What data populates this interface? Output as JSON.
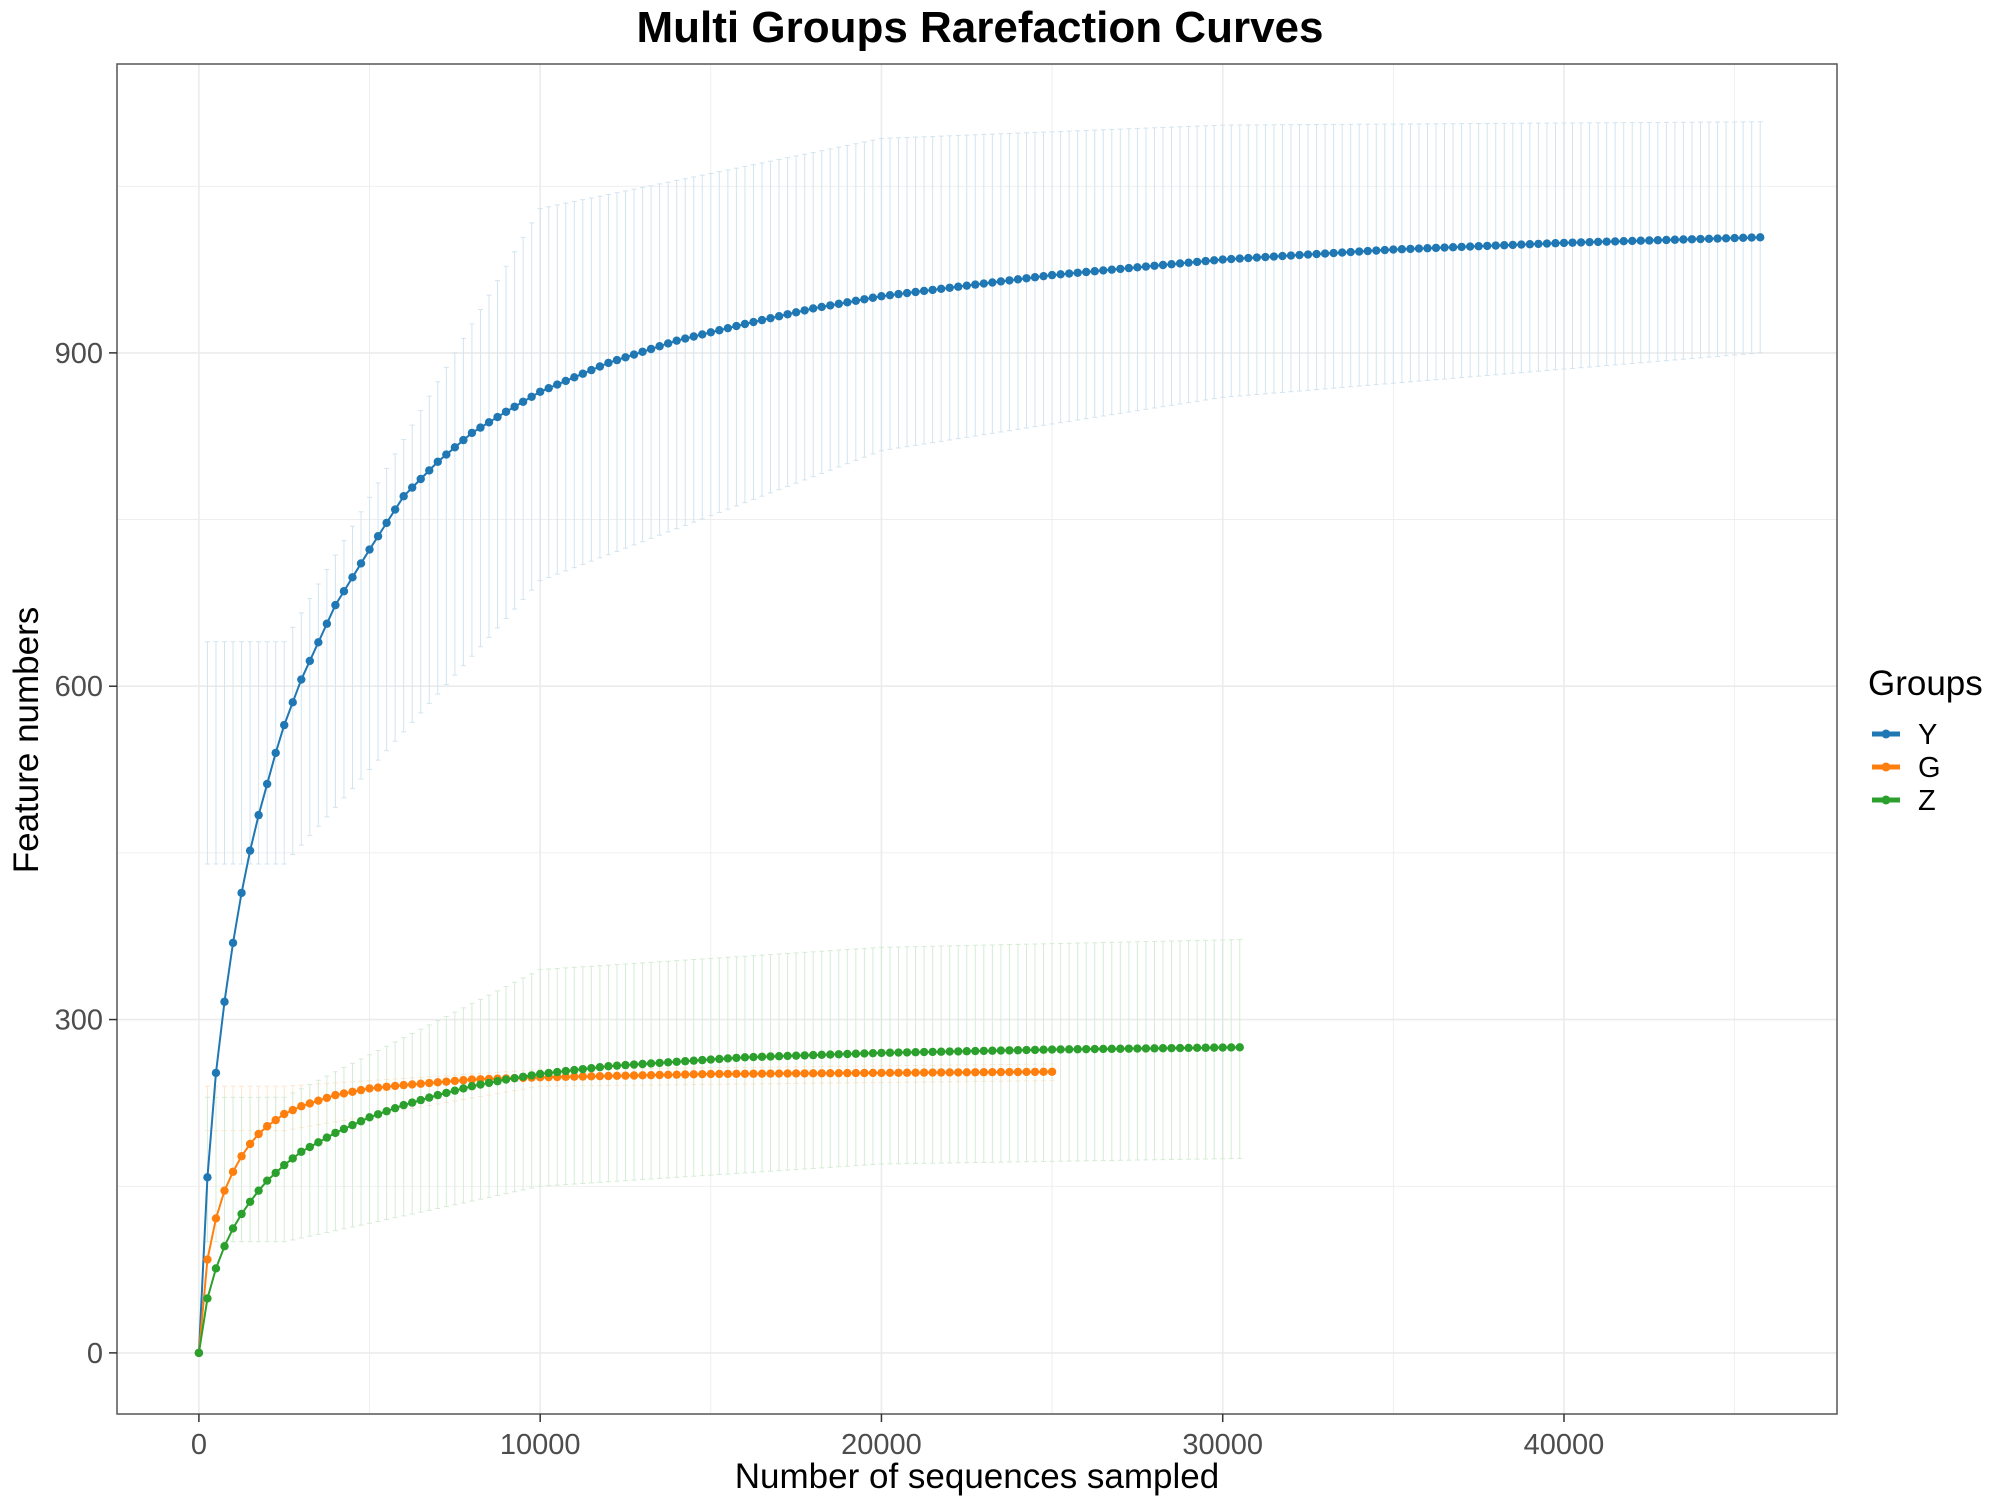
{
  "chart_data": {
    "type": "line",
    "title": "Multi Groups Rarefaction Curves",
    "xlabel": "Number of sequences sampled",
    "ylabel": "Feature numbers",
    "xlim": [
      -2400,
      48000
    ],
    "ylim": [
      -55,
      1160
    ],
    "x_ticks": [
      0,
      10000,
      20000,
      30000,
      40000
    ],
    "y_ticks": [
      0,
      300,
      600,
      900
    ],
    "grid": true,
    "legend": {
      "title": "Groups",
      "placement": "right"
    },
    "series": [
      {
        "name": "Y",
        "color": "#1f77b4",
        "x_step": 250,
        "x_max": 45750,
        "asymptote": 1030,
        "half_saturation": 1250,
        "error_band": [
          {
            "x": 2500,
            "lo": 440,
            "hi": 640
          },
          {
            "x": 10000,
            "lo": 695,
            "hi": 1030
          },
          {
            "x": 20000,
            "lo": 812,
            "hi": 1093
          },
          {
            "x": 30000,
            "lo": 860,
            "hi": 1105
          },
          {
            "x": 45750,
            "lo": 900,
            "hi": 1108
          }
        ],
        "points": [
          [
            0,
            0
          ],
          [
            250,
            158
          ],
          [
            500,
            252
          ],
          [
            750,
            316
          ],
          [
            1000,
            369
          ],
          [
            1250,
            414
          ],
          [
            1500,
            452
          ],
          [
            1750,
            484
          ],
          [
            2000,
            512
          ],
          [
            2250,
            540
          ],
          [
            2500,
            565
          ],
          [
            3000,
            606
          ],
          [
            4000,
            673
          ],
          [
            5000,
            723
          ],
          [
            6000,
            771
          ],
          [
            7000,
            802
          ],
          [
            8000,
            828
          ],
          [
            9000,
            847
          ],
          [
            10000,
            865
          ],
          [
            12000,
            891
          ],
          [
            14000,
            911
          ],
          [
            16000,
            926
          ],
          [
            18000,
            940
          ],
          [
            20000,
            951
          ],
          [
            25000,
            970
          ],
          [
            30000,
            984
          ],
          [
            35000,
            993
          ],
          [
            40000,
            999
          ],
          [
            45750,
            1004
          ]
        ]
      },
      {
        "name": "G",
        "color": "#ff7f0e",
        "x_step": 250,
        "x_max": 25000,
        "asymptote": 258,
        "half_saturation": 550,
        "error_band": [
          {
            "x": 2500,
            "lo": 200,
            "hi": 240
          },
          {
            "x": 10000,
            "lo": 240,
            "hi": 255
          },
          {
            "x": 25000,
            "lo": 245,
            "hi": 260
          }
        ],
        "points": [
          [
            0,
            0
          ],
          [
            250,
            84
          ],
          [
            500,
            121
          ],
          [
            750,
            146
          ],
          [
            1000,
            163
          ],
          [
            1250,
            177
          ],
          [
            1500,
            188
          ],
          [
            1750,
            197
          ],
          [
            2000,
            204
          ],
          [
            2500,
            215
          ],
          [
            3000,
            222
          ],
          [
            4000,
            232
          ],
          [
            5000,
            238
          ],
          [
            6000,
            241
          ],
          [
            8000,
            246
          ],
          [
            10000,
            248
          ],
          [
            15000,
            251
          ],
          [
            20000,
            252
          ],
          [
            25000,
            253
          ]
        ]
      },
      {
        "name": "Z",
        "color": "#2ca02c",
        "x_step": 250,
        "x_max": 30500,
        "asymptote": 285,
        "half_saturation": 1300,
        "error_band": [
          {
            "x": 2500,
            "lo": 100,
            "hi": 230
          },
          {
            "x": 10000,
            "lo": 150,
            "hi": 345
          },
          {
            "x": 20000,
            "lo": 170,
            "hi": 365
          },
          {
            "x": 30500,
            "lo": 175,
            "hi": 372
          }
        ],
        "points": [
          [
            0,
            0
          ],
          [
            250,
            49
          ],
          [
            500,
            76
          ],
          [
            750,
            96
          ],
          [
            1000,
            112
          ],
          [
            1250,
            125
          ],
          [
            1500,
            136
          ],
          [
            1750,
            146
          ],
          [
            2000,
            155
          ],
          [
            2500,
            169
          ],
          [
            3000,
            181
          ],
          [
            4000,
            198
          ],
          [
            5000,
            212
          ],
          [
            6000,
            223
          ],
          [
            7000,
            232
          ],
          [
            8000,
            240
          ],
          [
            9000,
            246
          ],
          [
            10000,
            251
          ],
          [
            12000,
            258
          ],
          [
            14000,
            262
          ],
          [
            16000,
            266
          ],
          [
            20000,
            270
          ],
          [
            25000,
            273
          ],
          [
            30500,
            275
          ]
        ]
      }
    ]
  }
}
